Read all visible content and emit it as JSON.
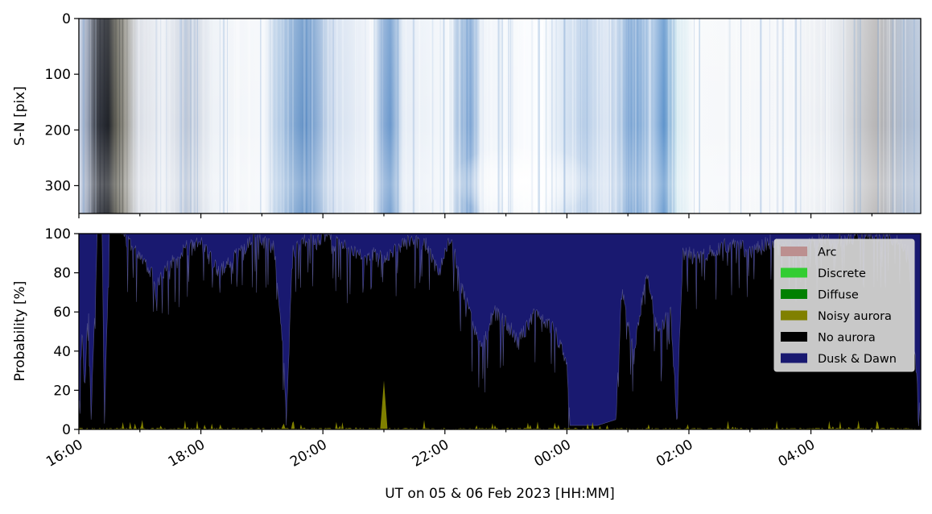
{
  "chart_data": [
    {
      "type": "heatmap",
      "ylabel": "S-N [pix]",
      "ylim": [
        350,
        0
      ],
      "yticks": [
        "0",
        "100",
        "200",
        "300"
      ],
      "ytick_values": [
        0,
        100,
        200,
        300
      ],
      "x_start_hours": 16.0,
      "x_end_hours": 29.8,
      "description_colors": {
        "dark_band_hours": [
          16.2,
          16.6
        ],
        "blue_bands_hours": [
          [
            19.6,
            20.0
          ],
          [
            20.8,
            21.1
          ],
          [
            22.1,
            22.4
          ],
          [
            24.8,
            25.4
          ],
          [
            25.8,
            26.2
          ]
        ],
        "grey_end_hours": [
          29.0,
          29.8
        ]
      }
    },
    {
      "type": "area",
      "stacked": true,
      "ylabel": "Probability [%]",
      "xlabel": "UT on 05 & 06 Feb 2023 [HH:MM]",
      "ylim": [
        0,
        100
      ],
      "yticks": [
        "0",
        "20",
        "40",
        "60",
        "80",
        "100"
      ],
      "ytick_values": [
        0,
        20,
        40,
        60,
        80,
        100
      ],
      "xticks": [
        "16:00",
        "18:00",
        "20:00",
        "22:00",
        "00:00",
        "02:00",
        "04:00"
      ],
      "xtick_hours": [
        16,
        18,
        20,
        22,
        24,
        26,
        28
      ],
      "xlim_hours": [
        16.0,
        29.8
      ],
      "legend_position": "upper-right",
      "series": [
        {
          "name": "Arc",
          "color": "#bc8f8f"
        },
        {
          "name": "Discrete",
          "color": "#32cd32"
        },
        {
          "name": "Diffuse",
          "color": "#008000"
        },
        {
          "name": "Noisy aurora",
          "color": "#808000"
        },
        {
          "name": "No aurora",
          "color": "#000000"
        },
        {
          "name": "Dusk & Dawn",
          "color": "#191970"
        }
      ],
      "no_aurora_profile": {
        "x_hours": [
          16.0,
          16.05,
          16.1,
          16.15,
          16.2,
          16.3,
          16.38,
          16.42,
          16.5,
          16.7,
          17.0,
          17.3,
          17.5,
          17.7,
          18.0,
          18.3,
          18.6,
          18.9,
          19.2,
          19.35,
          19.4,
          19.5,
          19.7,
          19.9,
          20.0,
          20.1,
          20.4,
          20.7,
          20.95,
          21.0,
          21.1,
          21.4,
          21.7,
          21.9,
          22.0,
          22.1,
          22.3,
          22.6,
          22.8,
          23.0,
          23.2,
          23.5,
          23.8,
          24.0,
          24.05,
          24.1,
          24.3,
          24.5,
          24.8,
          24.9,
          25.1,
          25.3,
          25.5,
          25.7,
          25.8,
          25.9,
          26.2,
          26.5,
          26.8,
          27.0,
          27.3,
          27.6,
          27.9,
          28.2,
          28.5,
          28.8,
          29.1,
          29.4,
          29.6,
          29.7,
          29.8
        ],
        "values": [
          5,
          50,
          20,
          70,
          5,
          100,
          100,
          3,
          100,
          100,
          90,
          75,
          85,
          92,
          95,
          80,
          90,
          97,
          94,
          40,
          2,
          90,
          97,
          95,
          100,
          98,
          92,
          88,
          90,
          85,
          90,
          96,
          94,
          80,
          90,
          98,
          70,
          40,
          60,
          55,
          45,
          60,
          50,
          35,
          2,
          2,
          2,
          2,
          5,
          70,
          40,
          80,
          50,
          60,
          5,
          90,
          88,
          93,
          95,
          90,
          96,
          92,
          94,
          98,
          96,
          99,
          99,
          97,
          90,
          40,
          5
        ],
        "noisy_spike_hour": 21.0,
        "noisy_spike_value": 25
      }
    }
  ]
}
